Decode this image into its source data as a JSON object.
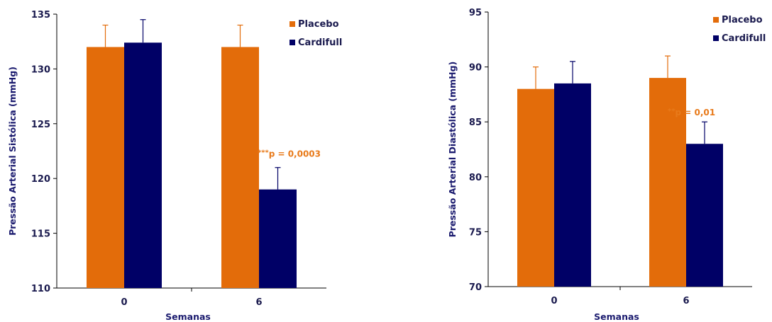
{
  "chart_data": [
    {
      "type": "bar",
      "categories": [
        "0",
        "6"
      ],
      "series": [
        {
          "name": "Placebo",
          "color": "#e36c0a",
          "values": [
            132,
            132
          ],
          "error": [
            2,
            2
          ]
        },
        {
          "name": "Cardifull",
          "color": "#000066",
          "values": [
            132.4,
            119
          ],
          "error": [
            2.1,
            2
          ]
        }
      ],
      "xlabel": "Semanas",
      "ylabel": "Pressão Arterial Sistólica (mmHg)",
      "ylim": [
        110,
        135
      ],
      "yticks": [
        "110",
        "115",
        "120",
        "125",
        "130",
        "135"
      ],
      "legend": "top-right",
      "annotation": {
        "stars": "***",
        "text": "p = 0,0003",
        "category": "6"
      }
    },
    {
      "type": "bar",
      "categories": [
        "0",
        "6"
      ],
      "series": [
        {
          "name": "Placebo",
          "color": "#e36c0a",
          "values": [
            88,
            89
          ],
          "error": [
            2,
            2
          ]
        },
        {
          "name": "Cardifull",
          "color": "#000066",
          "values": [
            88.5,
            83
          ],
          "error": [
            2,
            2
          ]
        }
      ],
      "xlabel": "Semanas",
      "ylabel": "Pressão Arterial Diastólica (mmHg)",
      "ylim": [
        70,
        95
      ],
      "yticks": [
        "70",
        "75",
        "80",
        "85",
        "90",
        "95"
      ],
      "legend": "top-right",
      "annotation": {
        "stars": "**",
        "text": "p = 0,01",
        "category": "6"
      }
    }
  ]
}
